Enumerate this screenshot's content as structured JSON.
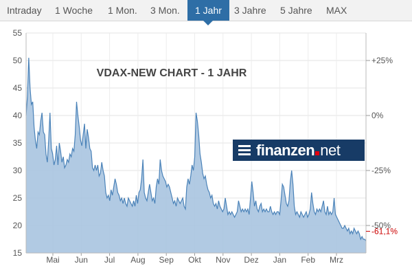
{
  "tabs": [
    {
      "label": "Intraday",
      "active": false
    },
    {
      "label": "1 Woche",
      "active": false
    },
    {
      "label": "1 Mon.",
      "active": false
    },
    {
      "label": "3 Mon.",
      "active": false
    },
    {
      "label": "1 Jahr",
      "active": true
    },
    {
      "label": "3 Jahre",
      "active": false
    },
    {
      "label": "5 Jahre",
      "active": false
    },
    {
      "label": "MAX",
      "active": false
    }
  ],
  "colors": {
    "accent": "#2e6ea6",
    "line": "#4a82b8",
    "fill": "#a9c4e0",
    "negative": "#cc0000",
    "logo_bg": "#173b66"
  },
  "logo": {
    "brand": "finanzen",
    "tld": "net",
    "icon": "menu-icon"
  },
  "chart_data": {
    "type": "area",
    "title": "VDAX-NEW CHART - 1 JAHR",
    "xlabel": "",
    "ylabel": "",
    "ylim": [
      15,
      55
    ],
    "yticks": [
      15,
      20,
      25,
      30,
      35,
      40,
      45,
      50,
      55
    ],
    "right_axis_ticks": [
      "+25%",
      "0%",
      "-25%",
      "-50%"
    ],
    "right_axis_values": [
      25,
      0,
      -25,
      -50
    ],
    "right_axis_last_label": "-61,1%",
    "x_tick_labels": [
      "Mai",
      "Jun",
      "Jul",
      "Aug",
      "Sep",
      "Okt",
      "Nov",
      "Dez",
      "Jan",
      "Feb",
      "Mrz"
    ],
    "grid": true,
    "series": [
      {
        "values": [
          40,
          43.5,
          50.5,
          45,
          42,
          42.5,
          38,
          35.5,
          34,
          37,
          36.5,
          39,
          40.5,
          37,
          36.5,
          33,
          31.5,
          35.5,
          40.5,
          34,
          33,
          31,
          32,
          34.5,
          31,
          35,
          33.5,
          31.5,
          32.5,
          30.5,
          31,
          32,
          31.5,
          33,
          32.5,
          34,
          33.5,
          36.5,
          42.5,
          40,
          38,
          35.5,
          34.5,
          36.5,
          38.5,
          34,
          37.5,
          36,
          34,
          33.5,
          30.5,
          30,
          31,
          30,
          31,
          29,
          29.5,
          31.5,
          30,
          29,
          26,
          25,
          25.5,
          24.5,
          26.5,
          25.5,
          27,
          28.5,
          27.5,
          26,
          25.5,
          24.5,
          25,
          24,
          25,
          24,
          23.5,
          25,
          24.5,
          24,
          23.5,
          24.5,
          23.5,
          25.5,
          24,
          26,
          26.5,
          28.5,
          32,
          26,
          25,
          24.5,
          26,
          27.5,
          26,
          24.5,
          25,
          24,
          27,
          28.5,
          27.5,
          32,
          30,
          29,
          28.5,
          28,
          27,
          27.5,
          27,
          26,
          25,
          24,
          24.5,
          23.5,
          25,
          24.5,
          24,
          24.5,
          25,
          23.5,
          23,
          27,
          28.5,
          27.5,
          29,
          31,
          30,
          32.5,
          40.5,
          39,
          36.5,
          33,
          31.5,
          29.5,
          28.5,
          29,
          27.5,
          26.5,
          26,
          25,
          25.5,
          24,
          23.5,
          24,
          23,
          24.5,
          23.5,
          23,
          22.5,
          23,
          25,
          23.5,
          22,
          22.5,
          22,
          22.5,
          22,
          21.5,
          22,
          22.5,
          24.5,
          23.5,
          22.5,
          23,
          22.5,
          23,
          22.5,
          23,
          22,
          25,
          28,
          26,
          23.5,
          24.5,
          23,
          22.5,
          23.5,
          24,
          22.5,
          23,
          22.5,
          23,
          22.5,
          22.5,
          23.5,
          22.5,
          22,
          22.5,
          22,
          22.5,
          22.5,
          22,
          24.5,
          27.5,
          27,
          25.5,
          24,
          23.5,
          24.5,
          28,
          30,
          27.5,
          23.5,
          22,
          22.5,
          22,
          21.5,
          22.5,
          22,
          21.5,
          22,
          22.5,
          21.5,
          22,
          23,
          26,
          24,
          22.5,
          22,
          23,
          22.5,
          23,
          22.5,
          23.5,
          24.5,
          22.5,
          22,
          23.5,
          22,
          22.5,
          22,
          22.5,
          25,
          22,
          21.5,
          21,
          20.5,
          20,
          19.5,
          19.5,
          20,
          19.5,
          19,
          19.5,
          18.5,
          19,
          18.5,
          19.5,
          19,
          18.5,
          19,
          18.5,
          17.5,
          18,
          17.5,
          17.5,
          17.2
        ]
      }
    ]
  }
}
